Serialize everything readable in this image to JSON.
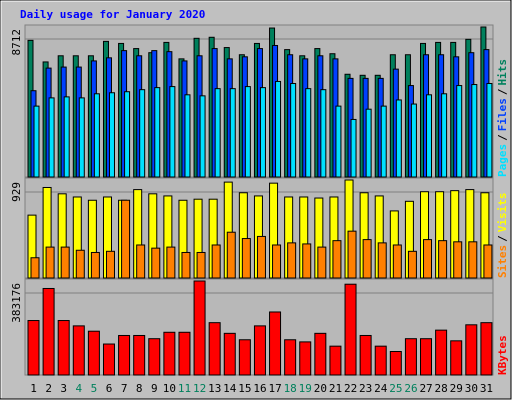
{
  "chart_data": [
    {
      "type": "bar",
      "title": "Daily usage for January 2020",
      "legend_separator": "/",
      "ylim": [
        0,
        8712
      ],
      "yticks": [
        8712
      ],
      "series": [
        {
          "name": "Hits",
          "color": "#00805c",
          "values": [
            7936,
            6683,
            7041,
            7041,
            7041,
            7877,
            7757,
            7459,
            7220,
            7817,
            6862,
            8055,
            8115,
            7518,
            7101,
            7757,
            8652,
            7399,
            7041,
            7459,
            7160,
            5967,
            5907,
            5907,
            7101,
            7101,
            7757,
            7817,
            7817,
            7996,
            8712
          ]
        },
        {
          "name": "Files",
          "color": "#0040ff",
          "values": [
            5012,
            6325,
            6385,
            6385,
            6743,
            6922,
            7340,
            7041,
            7340,
            7280,
            6743,
            7041,
            7459,
            6862,
            6981,
            7459,
            7638,
            7101,
            6862,
            7041,
            6862,
            5728,
            5728,
            5728,
            6265,
            5311,
            7101,
            7101,
            6981,
            7220,
            7399
          ]
        },
        {
          "name": "Pages",
          "color": "#00e0ff",
          "values": [
            4117,
            4595,
            4654,
            4595,
            4833,
            4893,
            4953,
            5072,
            5191,
            5251,
            4774,
            4714,
            5132,
            5132,
            5251,
            5191,
            5549,
            5430,
            5132,
            5072,
            4117,
            3342,
            3938,
            4117,
            4475,
            4237,
            4774,
            4833,
            5311,
            5370,
            5430
          ]
        }
      ]
    },
    {
      "type": "bar",
      "legend_separator": "/",
      "ylim": [
        0,
        929
      ],
      "yticks": [
        929
      ],
      "series": [
        {
          "name": "Visits",
          "color": "#ffff00",
          "values": [
            596,
            858,
            798,
            768,
            737,
            768,
            737,
            838,
            798,
            778,
            737,
            747,
            747,
            909,
            808,
            778,
            899,
            768,
            768,
            758,
            768,
            929,
            808,
            778,
            636,
            727,
            818,
            818,
            828,
            838,
            808
          ]
        },
        {
          "name": "Sites",
          "color": "#ff8000",
          "values": [
            192,
            293,
            293,
            263,
            242,
            253,
            737,
            313,
            283,
            293,
            242,
            242,
            313,
            434,
            374,
            394,
            313,
            333,
            323,
            293,
            354,
            444,
            364,
            333,
            313,
            253,
            364,
            354,
            343,
            343,
            313
          ]
        }
      ]
    },
    {
      "type": "bar",
      "ylim": [
        0,
        383176
      ],
      "yticks": [
        383176
      ],
      "categories": [
        "1",
        "2",
        "3",
        "4",
        "5",
        "6",
        "7",
        "8",
        "9",
        "10",
        "11",
        "12",
        "13",
        "14",
        "15",
        "16",
        "17",
        "18",
        "19",
        "20",
        "21",
        "22",
        "23",
        "24",
        "25",
        "26",
        "27",
        "28",
        "29",
        "30",
        "31"
      ],
      "category_colors": [
        "#000000",
        "#000000",
        "#000000",
        "#00805c",
        "#00805c",
        "#000000",
        "#000000",
        "#000000",
        "#000000",
        "#000000",
        "#00805c",
        "#00805c",
        "#000000",
        "#000000",
        "#000000",
        "#000000",
        "#000000",
        "#00805c",
        "#00805c",
        "#000000",
        "#000000",
        "#000000",
        "#000000",
        "#000000",
        "#00805c",
        "#00805c",
        "#000000",
        "#000000",
        "#000000",
        "#000000",
        "#000000"
      ],
      "series": [
        {
          "name": "KBytes",
          "color": "#ff0000",
          "values": [
            222054,
            352674,
            222054,
            200284,
            178514,
            126266,
            161098,
            161098,
            148036,
            174160,
            174160,
            383176,
            213346,
            169806,
            143682,
            200284,
            256886,
            143682,
            134974,
            169806,
            117558,
            370090,
            161098,
            117558,
            95788,
            148036,
            148036,
            182868,
            139328,
            204638,
            213346
          ]
        }
      ]
    }
  ]
}
